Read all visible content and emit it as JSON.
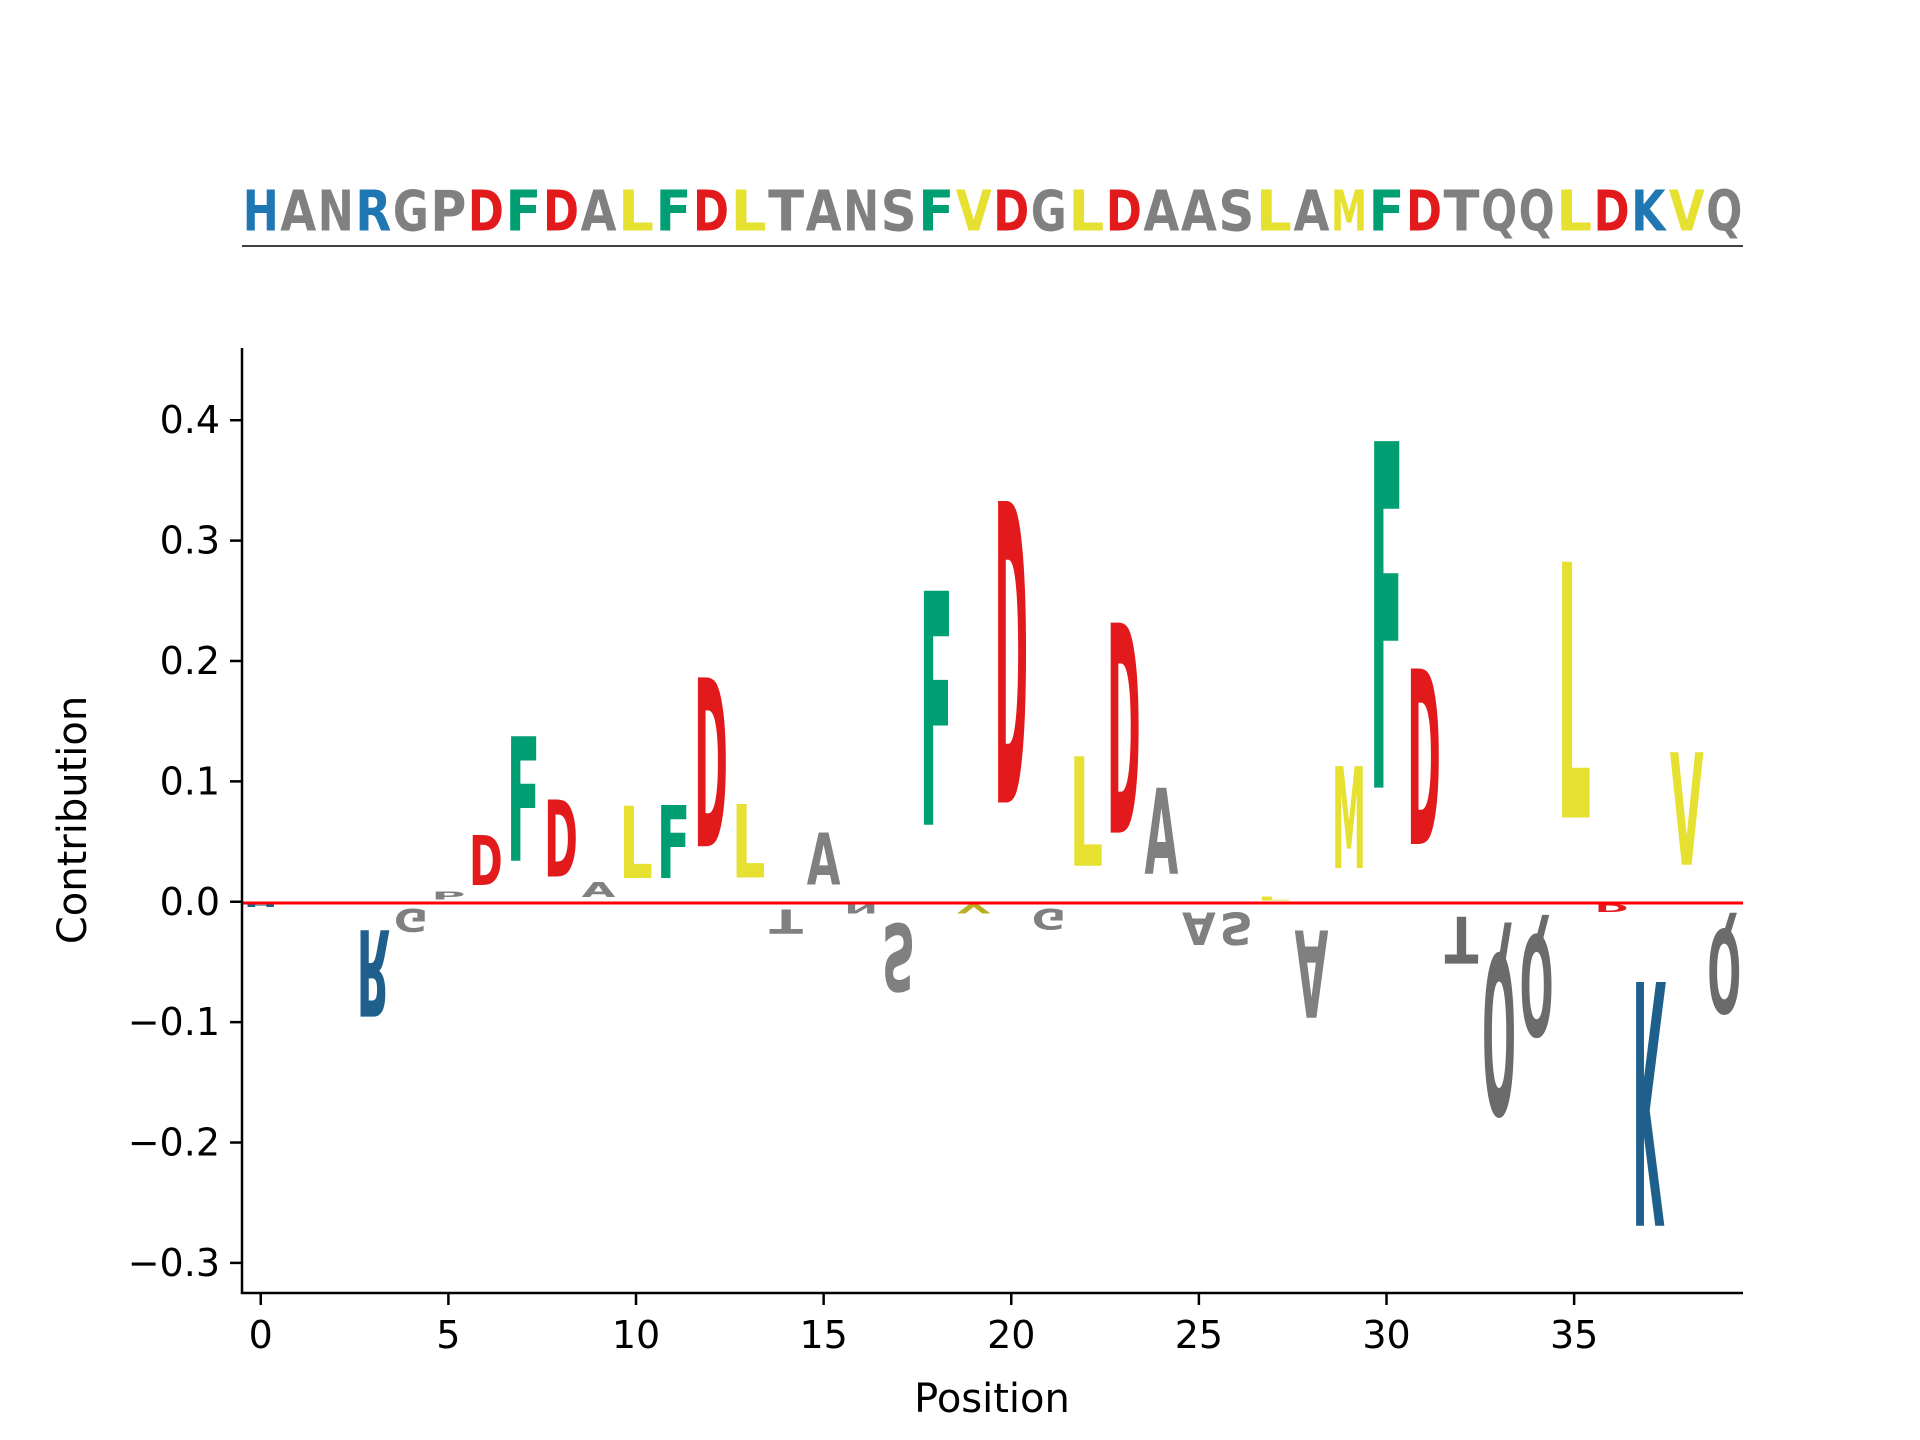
{
  "chart_data": {
    "type": "sequence-logo",
    "title": "",
    "xlabel": "Position",
    "ylabel": "Contribution",
    "xlim": [
      -0.5,
      39.5
    ],
    "ylim": [
      -0.325,
      0.46
    ],
    "xticks": [
      0,
      5,
      10,
      15,
      20,
      25,
      30,
      35
    ],
    "xtick_labels": [
      "0",
      "5",
      "10",
      "15",
      "20",
      "25",
      "30",
      "35"
    ],
    "yticks": [
      -0.3,
      -0.2,
      -0.1,
      0.0,
      0.1,
      0.2,
      0.3,
      0.4
    ],
    "ytick_labels": [
      "−0.3",
      "−0.2",
      "−0.1",
      "0.0",
      "0.1",
      "0.2",
      "0.3",
      "0.4"
    ],
    "baseline_color": "#ff0000",
    "sequence": "HANRGPDFDALFDLTANSFVDGLDAASLAMFDTQQLDKVQ",
    "colors": {
      "acidic": "#e31a1c",
      "basic": "#1f78b4",
      "basic_dark": "#1f5f8b",
      "aromatic": "#009e73",
      "hydrophobic": "#e6e030",
      "neutral": "#808080",
      "neutral_dark": "#6b6b6b",
      "olive": "#b8b020"
    },
    "header_colors": {
      "H": "basic",
      "K": "basic",
      "R": "basic",
      "D": "acidic",
      "E": "acidic",
      "F": "aromatic",
      "W": "aromatic",
      "Y": "aromatic",
      "L": "hydrophobic",
      "V": "hydrophobic",
      "M": "hydrophobic",
      "I": "hydrophobic"
    },
    "contributions": [
      {
        "position": 0,
        "residue": "H",
        "value": -0.005,
        "color": "basic_dark"
      },
      {
        "position": 1,
        "residue": "A",
        "value": 0.0,
        "color": "neutral"
      },
      {
        "position": 2,
        "residue": "N",
        "value": 0.0,
        "color": "neutral"
      },
      {
        "position": 3,
        "residue": "R",
        "value": -0.115,
        "color": "basic_dark"
      },
      {
        "position": 4,
        "residue": "G",
        "value": -0.03,
        "color": "neutral"
      },
      {
        "position": 5,
        "residue": "P",
        "value": 0.01,
        "color": "neutral"
      },
      {
        "position": 6,
        "residue": "D",
        "value": 0.067,
        "color": "acidic"
      },
      {
        "position": 7,
        "residue": "F",
        "value": 0.166,
        "color": "aromatic"
      },
      {
        "position": 8,
        "residue": "D",
        "value": 0.102,
        "color": "acidic"
      },
      {
        "position": 9,
        "residue": "A",
        "value": 0.02,
        "color": "neutral"
      },
      {
        "position": 10,
        "residue": "L",
        "value": 0.096,
        "color": "hydrophobic"
      },
      {
        "position": 11,
        "residue": "F",
        "value": 0.097,
        "color": "aromatic"
      },
      {
        "position": 12,
        "residue": "D",
        "value": 0.225,
        "color": "acidic"
      },
      {
        "position": 13,
        "residue": "L",
        "value": 0.098,
        "color": "hydrophobic"
      },
      {
        "position": 14,
        "residue": "T",
        "value": -0.032,
        "color": "neutral"
      },
      {
        "position": 15,
        "residue": "A",
        "value": 0.069,
        "color": "neutral"
      },
      {
        "position": 16,
        "residue": "N",
        "value": -0.012,
        "color": "neutral"
      },
      {
        "position": 17,
        "residue": "S",
        "value": -0.09,
        "color": "neutral"
      },
      {
        "position": 18,
        "residue": "F",
        "value": 0.312,
        "color": "aromatic"
      },
      {
        "position": 19,
        "residue": "V",
        "value": -0.012,
        "color": "olive"
      },
      {
        "position": 20,
        "residue": "D",
        "value": 0.402,
        "color": "acidic"
      },
      {
        "position": 21,
        "residue": "G",
        "value": -0.028,
        "color": "neutral"
      },
      {
        "position": 22,
        "residue": "L",
        "value": 0.146,
        "color": "hydrophobic"
      },
      {
        "position": 23,
        "residue": "D",
        "value": 0.28,
        "color": "acidic"
      },
      {
        "position": 24,
        "residue": "A",
        "value": 0.114,
        "color": "neutral"
      },
      {
        "position": 25,
        "residue": "A",
        "value": -0.043,
        "color": "neutral"
      },
      {
        "position": 26,
        "residue": "S",
        "value": -0.043,
        "color": "neutral"
      },
      {
        "position": 27,
        "residue": "L",
        "value": 0.005,
        "color": "hydrophobic"
      },
      {
        "position": 28,
        "residue": "A",
        "value": -0.116,
        "color": "neutral"
      },
      {
        "position": 29,
        "residue": "M",
        "value": 0.136,
        "color": "hydrophobic"
      },
      {
        "position": 30,
        "residue": "F",
        "value": 0.462,
        "color": "aromatic"
      },
      {
        "position": 31,
        "residue": "D",
        "value": 0.234,
        "color": "acidic"
      },
      {
        "position": 32,
        "residue": "T",
        "value": -0.062,
        "color": "neutral_dark"
      },
      {
        "position": 33,
        "residue": "Q",
        "value": -0.214,
        "color": "neutral_dark"
      },
      {
        "position": 34,
        "residue": "Q",
        "value": -0.135,
        "color": "neutral_dark"
      },
      {
        "position": 35,
        "residue": "L",
        "value": 0.341,
        "color": "hydrophobic"
      },
      {
        "position": 36,
        "residue": "D",
        "value": -0.01,
        "color": "acidic"
      },
      {
        "position": 37,
        "residue": "K",
        "value": -0.325,
        "color": "basic_dark"
      },
      {
        "position": 38,
        "residue": "V",
        "value": 0.15,
        "color": "hydrophobic"
      },
      {
        "position": 39,
        "residue": "Q",
        "value": -0.112,
        "color": "neutral_dark"
      }
    ]
  }
}
